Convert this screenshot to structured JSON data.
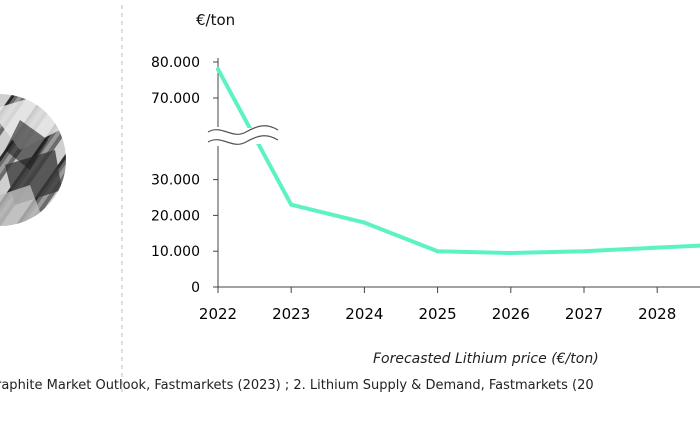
{
  "chart_data": {
    "type": "line",
    "ylabel": "€/ton",
    "x": [
      2022,
      2023,
      2024,
      2025,
      2026,
      2027,
      2028
    ],
    "categories": [
      "2022",
      "2023",
      "2024",
      "2025",
      "2026",
      "2027",
      "2028"
    ],
    "series": [
      {
        "values": [
          78000,
          23000,
          18000,
          10000,
          9500,
          10000,
          11000
        ]
      }
    ],
    "y_ticks_lower": [
      "0",
      "10.000",
      "20.000",
      "30.000"
    ],
    "y_ticks_upper": [
      "70.000",
      "80.000"
    ],
    "ylim": [
      0,
      80000
    ],
    "axis_break": [
      35000,
      65000
    ],
    "grid": false,
    "caption": "Forecasted Lithium price (€/ton)",
    "line_color": "#5cf2c4"
  },
  "footnote": "raphite Market Outlook, Fastmarkets (2023) ; 2. Lithium Supply & Demand, Fastmarkets (20"
}
